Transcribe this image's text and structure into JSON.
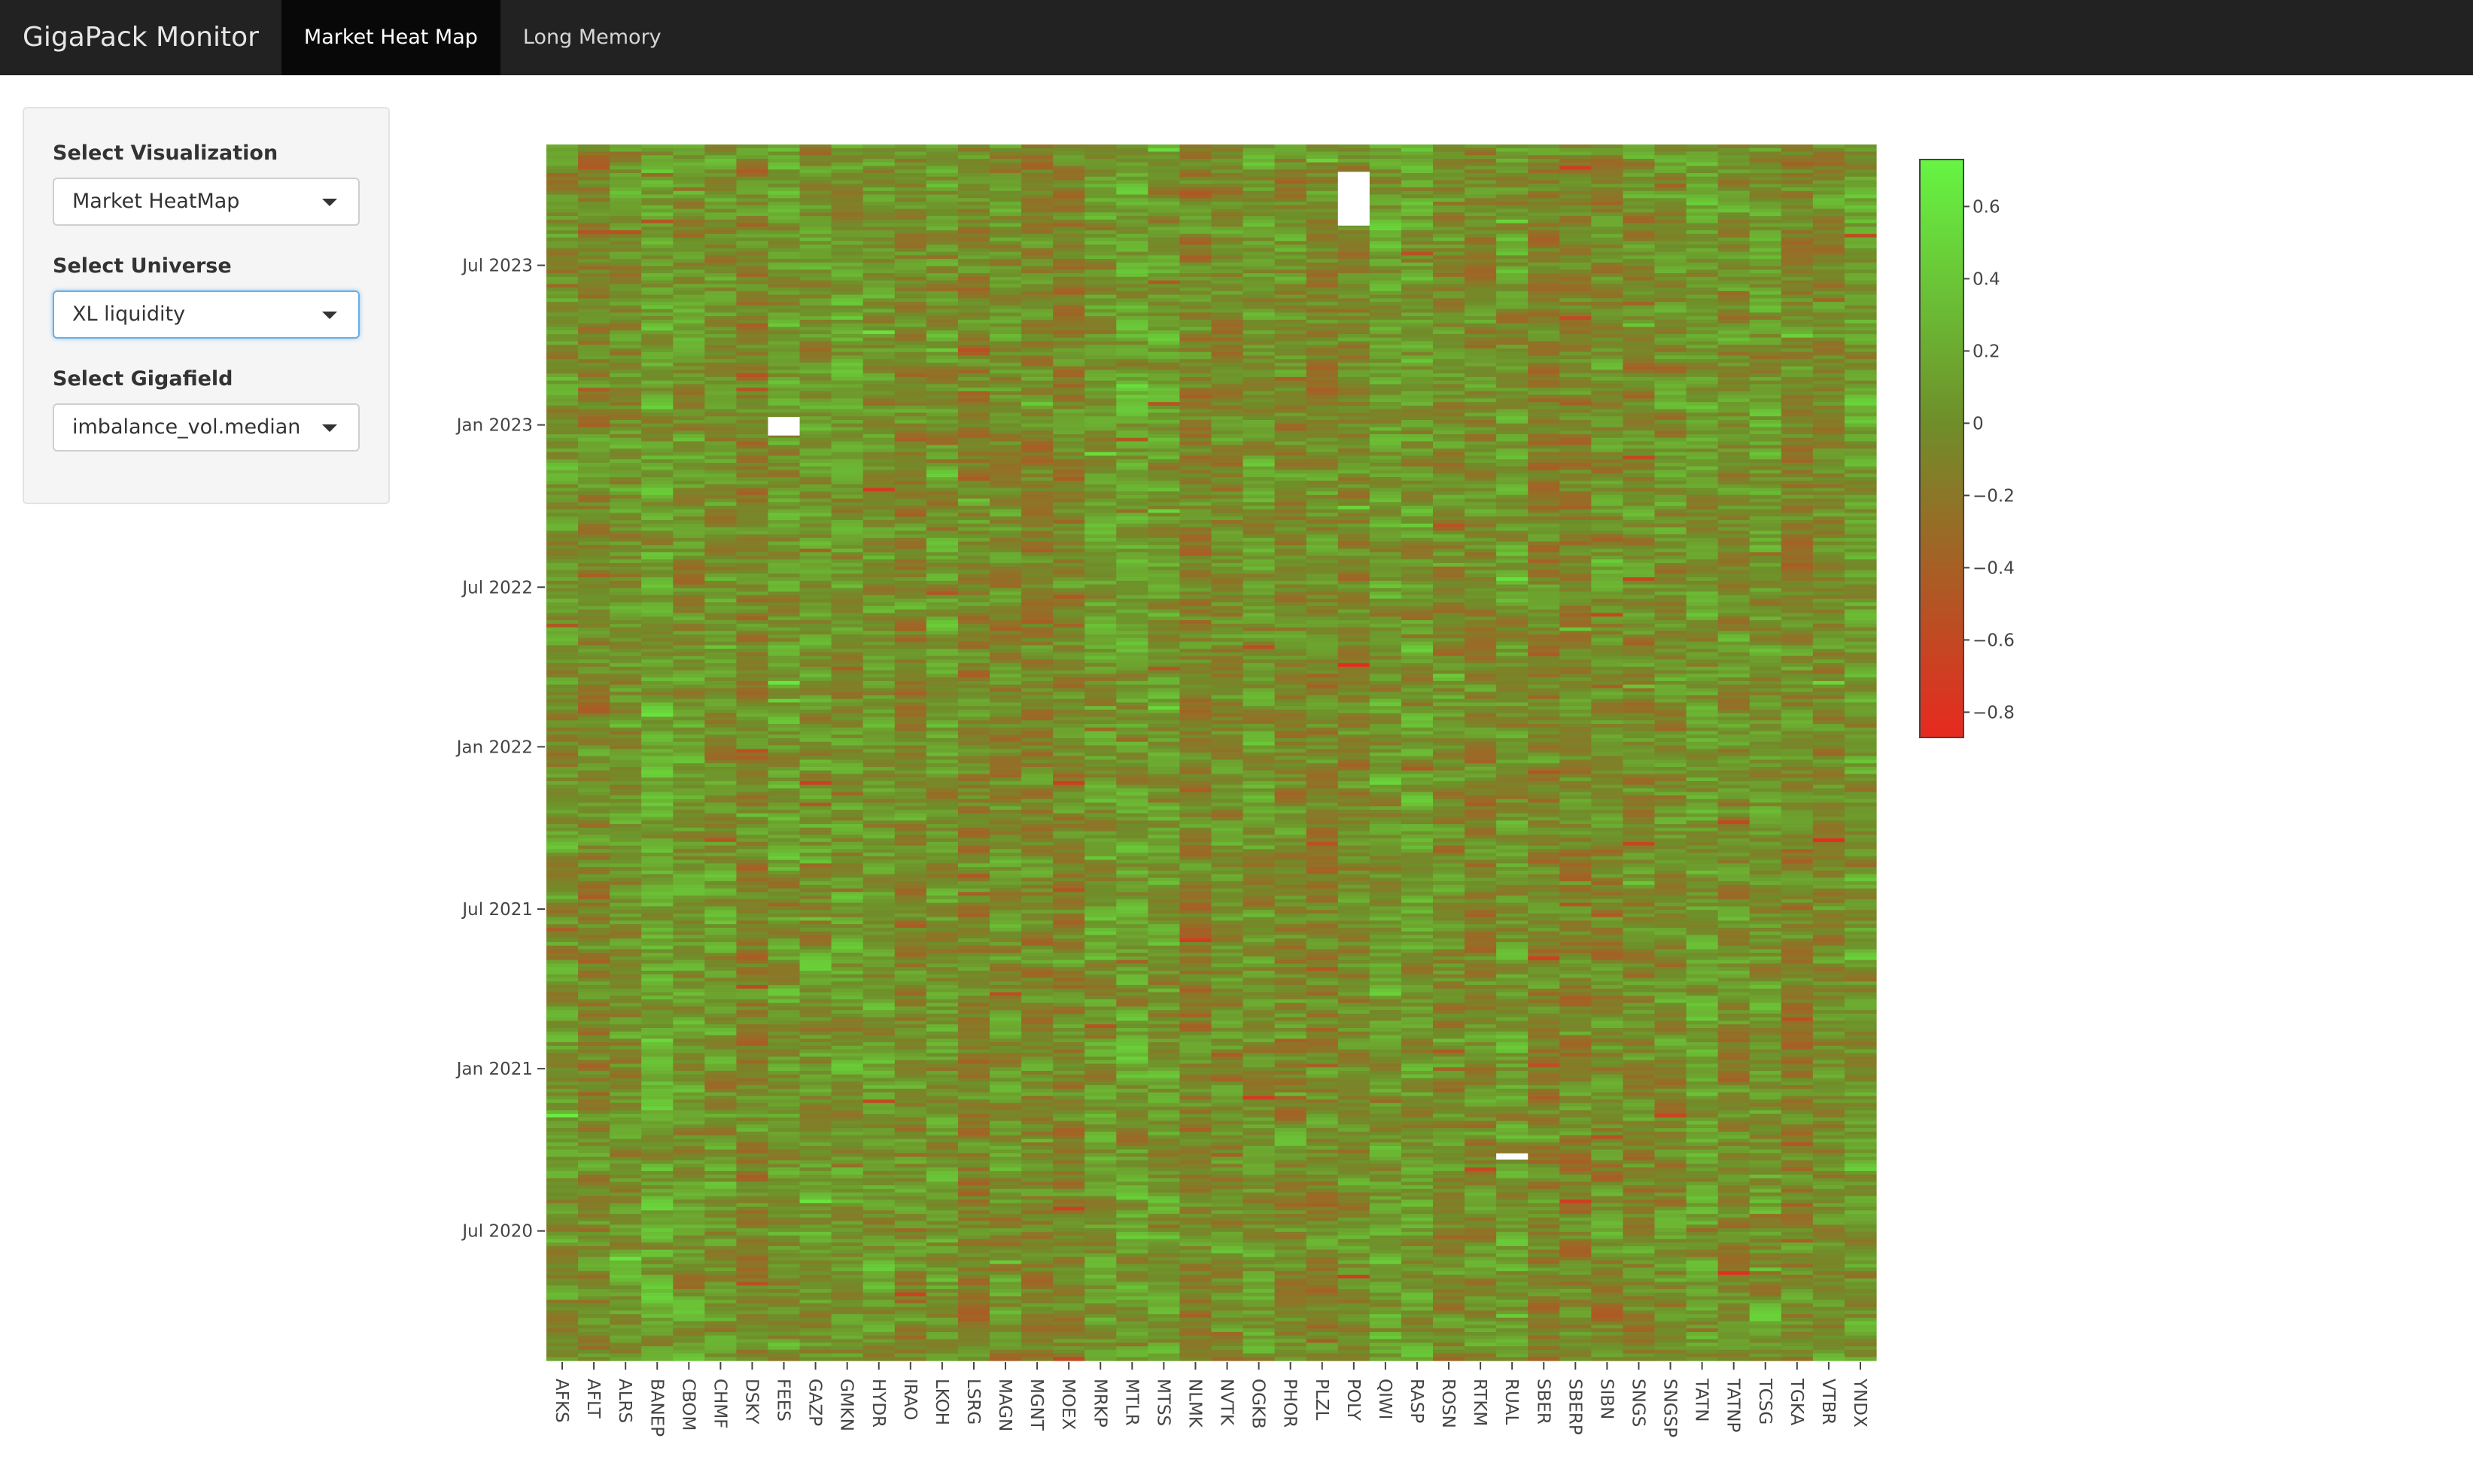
{
  "navbar": {
    "brand": "GigaPack Monitor",
    "tabs": [
      {
        "label": "Market Heat Map",
        "active": true
      },
      {
        "label": "Long Memory",
        "active": false
      }
    ]
  },
  "sidebar": {
    "visualization": {
      "label": "Select Visualization",
      "value": "Market HeatMap"
    },
    "universe": {
      "label": "Select Universe",
      "value": "XL liquidity"
    },
    "gigafield": {
      "label": "Select Gigafield",
      "value": "imbalance_vol.median"
    }
  },
  "chart_data": {
    "type": "heatmap",
    "title": "",
    "xlabel": "",
    "ylabel": "",
    "x_categories": [
      "AFKS",
      "AFLT",
      "ALRS",
      "BANEP",
      "CBOM",
      "CHMF",
      "DSKY",
      "FEES",
      "GAZP",
      "GMKN",
      "HYDR",
      "IRAO",
      "LKOH",
      "LSRG",
      "MAGN",
      "MGNT",
      "MOEX",
      "MRKP",
      "MTLR",
      "MTSS",
      "NLMK",
      "NVTK",
      "OGKB",
      "PHOR",
      "PLZL",
      "POLY",
      "QIWI",
      "RASP",
      "ROSN",
      "RTKM",
      "RUAL",
      "SBER",
      "SBERP",
      "SIBN",
      "SNGS",
      "SNGSP",
      "TATN",
      "TATNP",
      "TCSG",
      "TGKA",
      "VTBR",
      "YNDX"
    ],
    "y_axis": {
      "type": "date",
      "range": [
        "2020-02-05",
        "2023-11-15"
      ],
      "tick_values": [
        "2020-07-01",
        "2021-01-01",
        "2021-07-01",
        "2022-01-01",
        "2022-07-01",
        "2023-01-01",
        "2023-07-01"
      ],
      "tick_labels": [
        "Jul 2020",
        "Jan 2021",
        "Jul 2021",
        "Jan 2022",
        "Jul 2022",
        "Jan 2023",
        "Jul 2023"
      ]
    },
    "colorscale": {
      "min": -0.87,
      "max": 0.73,
      "low_color": "#e8291f",
      "mid_color": "#6f8e2a",
      "high_color": "#66f542",
      "tick_values": [
        0.6,
        0.4,
        0.2,
        0,
        -0.2,
        -0.4,
        -0.6,
        -0.8
      ],
      "tick_labels": [
        "0.6",
        "0.4",
        "0.2",
        "0",
        "−0.2",
        "−0.4",
        "−0.6",
        "−0.8"
      ]
    },
    "missing_cells": [
      {
        "ticker": "FEES",
        "from": "2022-12-20",
        "to": "2023-01-10"
      },
      {
        "ticker": "POLY",
        "from": "2023-08-15",
        "to": "2023-10-15"
      },
      {
        "ticker": "RUAL",
        "from": "2020-09-20",
        "to": "2020-09-27"
      }
    ],
    "notes": "Dense daily heatmap; individual cell values cannot be read from the image and are rendered as a randomized field with column-wise tendencies."
  }
}
